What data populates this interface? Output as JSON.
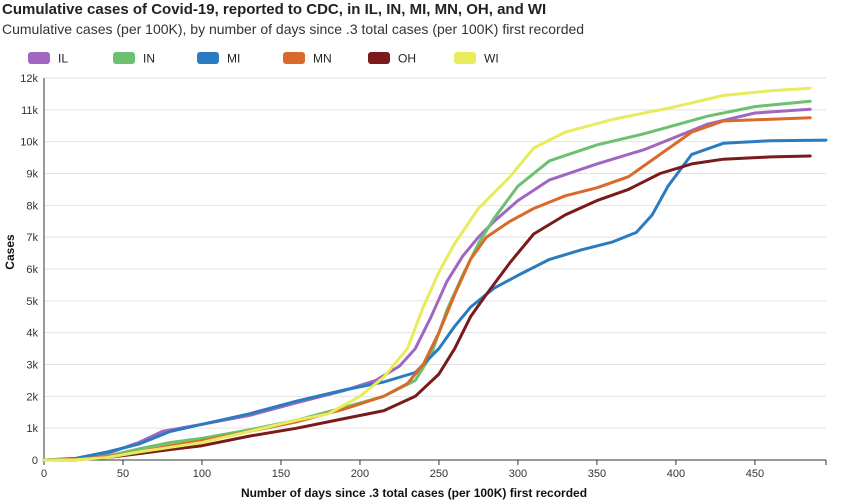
{
  "chart_data": {
    "type": "line",
    "title": "Cumulative cases of Covid-19, reported to CDC, in IL, IN, MI, MN, OH, and WI",
    "subtitle": "Cumulative cases (per 100K), by number of days since .3 total cases (per 100K) first recorded",
    "xlabel": "Number of days since .3 total cases (per 100K) first recorded",
    "ylabel": "Cases",
    "xlim": [
      0,
      495
    ],
    "ylim": [
      0,
      12000
    ],
    "x_ticks": [
      0,
      50,
      100,
      150,
      200,
      250,
      300,
      350,
      400,
      450
    ],
    "y_ticks": [
      0,
      1000,
      2000,
      3000,
      4000,
      5000,
      6000,
      7000,
      8000,
      9000,
      10000,
      11000,
      12000
    ],
    "y_tick_labels": [
      "0",
      "1k",
      "2k",
      "3k",
      "4k",
      "5k",
      "6k",
      "7k",
      "8k",
      "9k",
      "10k",
      "11k",
      "12k"
    ],
    "grid": "horizontal",
    "legend_position": "top",
    "series": [
      {
        "name": "IL",
        "color": "#a066c0",
        "points": [
          [
            0,
            0
          ],
          [
            20,
            30
          ],
          [
            40,
            200
          ],
          [
            60,
            550
          ],
          [
            75,
            900
          ],
          [
            100,
            1120
          ],
          [
            130,
            1400
          ],
          [
            160,
            1800
          ],
          [
            190,
            2180
          ],
          [
            210,
            2500
          ],
          [
            225,
            2950
          ],
          [
            235,
            3500
          ],
          [
            245,
            4500
          ],
          [
            255,
            5600
          ],
          [
            265,
            6400
          ],
          [
            275,
            7000
          ],
          [
            285,
            7500
          ],
          [
            300,
            8150
          ],
          [
            320,
            8800
          ],
          [
            350,
            9300
          ],
          [
            380,
            9750
          ],
          [
            420,
            10550
          ],
          [
            450,
            10900
          ],
          [
            485,
            11020
          ]
        ]
      },
      {
        "name": "IN",
        "color": "#6cc070",
        "points": [
          [
            0,
            0
          ],
          [
            20,
            20
          ],
          [
            40,
            120
          ],
          [
            60,
            350
          ],
          [
            80,
            550
          ],
          [
            100,
            680
          ],
          [
            130,
            950
          ],
          [
            160,
            1250
          ],
          [
            190,
            1650
          ],
          [
            215,
            2000
          ],
          [
            235,
            2500
          ],
          [
            245,
            3300
          ],
          [
            255,
            4700
          ],
          [
            265,
            5800
          ],
          [
            275,
            6800
          ],
          [
            285,
            7600
          ],
          [
            300,
            8600
          ],
          [
            320,
            9400
          ],
          [
            350,
            9900
          ],
          [
            380,
            10250
          ],
          [
            420,
            10800
          ],
          [
            450,
            11100
          ],
          [
            485,
            11270
          ]
        ]
      },
      {
        "name": "MI",
        "color": "#2a7bc0",
        "points": [
          [
            0,
            0
          ],
          [
            20,
            50
          ],
          [
            40,
            250
          ],
          [
            60,
            500
          ],
          [
            80,
            900
          ],
          [
            100,
            1120
          ],
          [
            130,
            1450
          ],
          [
            160,
            1850
          ],
          [
            190,
            2200
          ],
          [
            215,
            2450
          ],
          [
            235,
            2750
          ],
          [
            250,
            3500
          ],
          [
            260,
            4200
          ],
          [
            270,
            4800
          ],
          [
            285,
            5400
          ],
          [
            300,
            5800
          ],
          [
            320,
            6300
          ],
          [
            340,
            6600
          ],
          [
            360,
            6850
          ],
          [
            375,
            7150
          ],
          [
            385,
            7700
          ],
          [
            395,
            8600
          ],
          [
            410,
            9600
          ],
          [
            430,
            9950
          ],
          [
            460,
            10030
          ],
          [
            495,
            10050
          ]
        ]
      },
      {
        "name": "MN",
        "color": "#d96a2a",
        "points": [
          [
            0,
            0
          ],
          [
            20,
            20
          ],
          [
            40,
            100
          ],
          [
            60,
            250
          ],
          [
            80,
            450
          ],
          [
            100,
            600
          ],
          [
            130,
            900
          ],
          [
            160,
            1200
          ],
          [
            190,
            1600
          ],
          [
            215,
            2000
          ],
          [
            230,
            2400
          ],
          [
            240,
            3000
          ],
          [
            250,
            4000
          ],
          [
            260,
            5200
          ],
          [
            270,
            6300
          ],
          [
            280,
            7000
          ],
          [
            295,
            7500
          ],
          [
            310,
            7900
          ],
          [
            330,
            8300
          ],
          [
            350,
            8550
          ],
          [
            370,
            8900
          ],
          [
            390,
            9600
          ],
          [
            410,
            10300
          ],
          [
            430,
            10650
          ],
          [
            485,
            10750
          ]
        ]
      },
      {
        "name": "OH",
        "color": "#7a1a1a",
        "points": [
          [
            0,
            0
          ],
          [
            20,
            10
          ],
          [
            40,
            80
          ],
          [
            60,
            200
          ],
          [
            80,
            330
          ],
          [
            100,
            450
          ],
          [
            130,
            750
          ],
          [
            160,
            1000
          ],
          [
            190,
            1300
          ],
          [
            215,
            1550
          ],
          [
            235,
            2000
          ],
          [
            250,
            2700
          ],
          [
            260,
            3500
          ],
          [
            270,
            4500
          ],
          [
            280,
            5200
          ],
          [
            295,
            6200
          ],
          [
            310,
            7100
          ],
          [
            330,
            7700
          ],
          [
            350,
            8150
          ],
          [
            370,
            8500
          ],
          [
            390,
            9000
          ],
          [
            410,
            9300
          ],
          [
            430,
            9450
          ],
          [
            460,
            9520
          ],
          [
            485,
            9550
          ]
        ]
      },
      {
        "name": "WI",
        "color": "#e8ec5c",
        "points": [
          [
            0,
            0
          ],
          [
            20,
            10
          ],
          [
            40,
            80
          ],
          [
            60,
            250
          ],
          [
            80,
            400
          ],
          [
            100,
            550
          ],
          [
            130,
            900
          ],
          [
            160,
            1250
          ],
          [
            180,
            1450
          ],
          [
            200,
            2000
          ],
          [
            215,
            2600
          ],
          [
            230,
            3500
          ],
          [
            240,
            4800
          ],
          [
            250,
            5900
          ],
          [
            260,
            6800
          ],
          [
            275,
            7900
          ],
          [
            295,
            8900
          ],
          [
            310,
            9800
          ],
          [
            330,
            10300
          ],
          [
            360,
            10700
          ],
          [
            400,
            11100
          ],
          [
            430,
            11450
          ],
          [
            460,
            11600
          ],
          [
            485,
            11680
          ]
        ]
      }
    ]
  }
}
